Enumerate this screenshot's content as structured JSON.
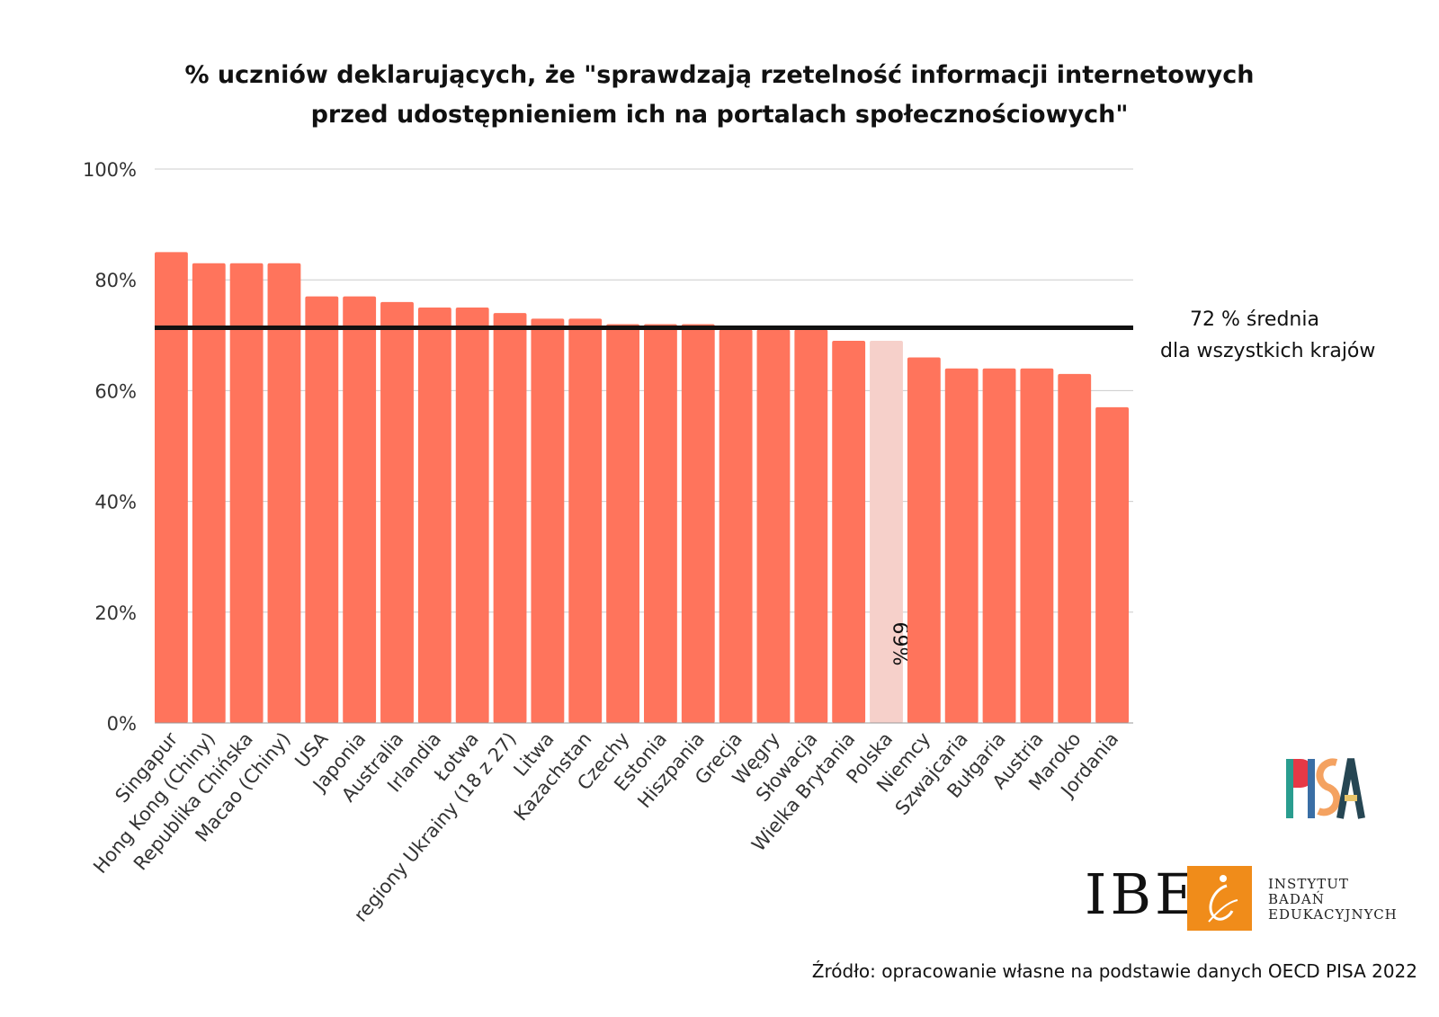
{
  "title_lines": [
    "% uczniów deklarujących, że \"sprawdzają rzetelność informacji internetowych",
    "przed udostępnieniem ich na portalach społecznościowych\""
  ],
  "average_label_lines": [
    "72 % średnia",
    "dla wszystkich krajów"
  ],
  "logos": {
    "pisa": "PISA",
    "ibe": "IBE",
    "ibe_full_lines": [
      "INSTYTUT",
      "BADAŃ",
      "EDUKACYJNYCH"
    ]
  },
  "source": "Źródło: opracowanie własne na podstawie danych OECD PISA 2022",
  "colors": {
    "bar": "#ff745c",
    "highlight_bar": "#f6d0ca",
    "average_line": "#111111",
    "grid": "#cccccc",
    "ibe_orange": "#f08c1a"
  },
  "chart_data": {
    "type": "bar",
    "categories": [
      "Singapur",
      "Hong Kong (Chiny)",
      "Republika Chińska",
      "Macao (Chiny)",
      "USA",
      "Japonia",
      "Australia",
      "Irlandia",
      "Łotwa",
      "regiony Ukrainy (18 z 27)",
      "Litwa",
      "Kazachstan",
      "Czechy",
      "Estonia",
      "Hiszpania",
      "Grecja",
      "Węgry",
      "Słowacja",
      "Wielka Brytania",
      "Polska",
      "Niemcy",
      "Szwajcaria",
      "Bułgaria",
      "Austria",
      "Maroko",
      "Jordania"
    ],
    "values": [
      85,
      83,
      83,
      83,
      77,
      77,
      76,
      75,
      75,
      74,
      73,
      73,
      72,
      72,
      72,
      71,
      71,
      71,
      69,
      69,
      66,
      64,
      64,
      64,
      63,
      57
    ],
    "highlight_category": "Polska",
    "highlight_label": "69%",
    "average": 72,
    "ylim": [
      0,
      100
    ],
    "yticks": [
      0,
      20,
      40,
      60,
      80,
      100
    ],
    "ytick_labels": [
      "0%",
      "20%",
      "40%",
      "60%",
      "80%",
      "100%"
    ],
    "grid": true,
    "xlabel": "",
    "ylabel": ""
  }
}
